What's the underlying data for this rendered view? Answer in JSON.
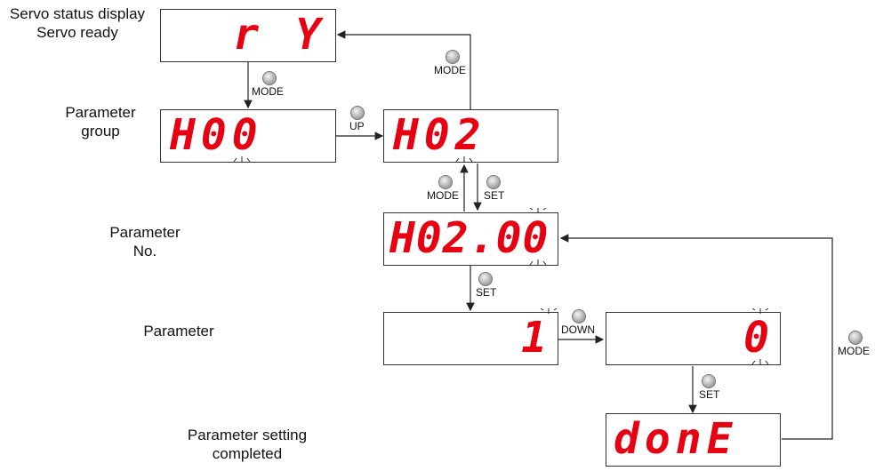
{
  "labels": {
    "servo_status": "Servo status display",
    "servo_ready": "Servo ready",
    "param_group_1": "Parameter",
    "param_group_2": "group",
    "param_no_1": "Parameter",
    "param_no_2": "No.",
    "parameter": "Parameter",
    "setting_done_1": "Parameter setting",
    "setting_done_2": "completed"
  },
  "displays": {
    "ready": "r Y",
    "group_h00": "H00",
    "group_h02": "H02",
    "param_no": "H02.00",
    "value_1": "1",
    "value_0": "0",
    "done": "donE"
  },
  "buttons": {
    "mode": "MODE",
    "up": "UP",
    "set": "SET",
    "down": "DOWN"
  },
  "colors": {
    "segment": "#e60012",
    "button": "#b0b0b0"
  }
}
